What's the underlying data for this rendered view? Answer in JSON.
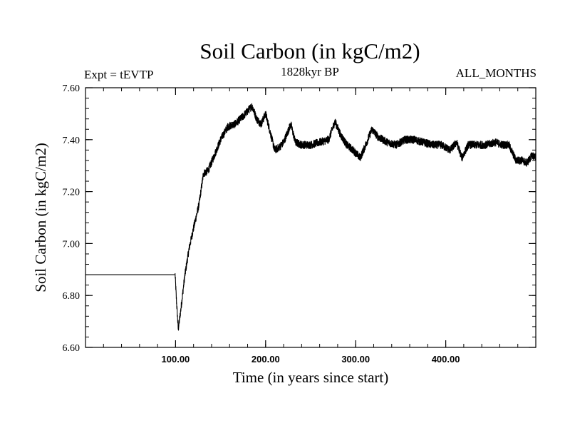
{
  "chart_data": {
    "type": "line",
    "title": "Soil Carbon (in kgC/m2)",
    "subtitle": "1828kyr BP",
    "left_label": "Expt = tEVTP",
    "right_label": "ALL_MONTHS",
    "xlabel": "Time (in years since start)",
    "ylabel": "Soil Carbon (in kgC/m2)",
    "xlim": [
      0,
      500
    ],
    "ylim": [
      6.6,
      7.6
    ],
    "x_ticks": [
      100,
      200,
      300,
      400
    ],
    "x_tick_labels": [
      "100.00",
      "200.00",
      "300.00",
      "400.00"
    ],
    "y_ticks": [
      6.6,
      6.8,
      7.0,
      7.2,
      7.4,
      7.6
    ],
    "y_tick_labels": [
      "6.60",
      "6.80",
      "7.00",
      "7.20",
      "7.40",
      "7.60"
    ],
    "x_minor_step": 20,
    "y_minor_step": 0.04,
    "line_color": "#000000",
    "series": [
      {
        "name": "Soil Carbon",
        "noise_amplitude": 0.015,
        "x": [
          0,
          99.5,
          101,
          103,
          106,
          110,
          115,
          120,
          126,
          131,
          136,
          142,
          150,
          158,
          166,
          175,
          185,
          190,
          195,
          200,
          205,
          210,
          215,
          220,
          228,
          233,
          240,
          250,
          260,
          270,
          277,
          283,
          290,
          297,
          305,
          310,
          318,
          325,
          335,
          345,
          355,
          365,
          375,
          385,
          395,
          405,
          412,
          418,
          425,
          435,
          445,
          455,
          463,
          470,
          478,
          485,
          490,
          496,
          500
        ],
        "y": [
          6.88,
          6.88,
          6.78,
          6.67,
          6.75,
          6.87,
          6.98,
          7.06,
          7.15,
          7.27,
          7.28,
          7.33,
          7.4,
          7.45,
          7.46,
          7.49,
          7.53,
          7.48,
          7.46,
          7.5,
          7.43,
          7.36,
          7.37,
          7.39,
          7.46,
          7.39,
          7.38,
          7.38,
          7.39,
          7.4,
          7.47,
          7.42,
          7.38,
          7.36,
          7.33,
          7.37,
          7.44,
          7.41,
          7.39,
          7.38,
          7.4,
          7.4,
          7.39,
          7.38,
          7.38,
          7.36,
          7.39,
          7.33,
          7.38,
          7.38,
          7.38,
          7.39,
          7.38,
          7.38,
          7.32,
          7.32,
          7.31,
          7.34,
          7.33
        ]
      }
    ]
  }
}
